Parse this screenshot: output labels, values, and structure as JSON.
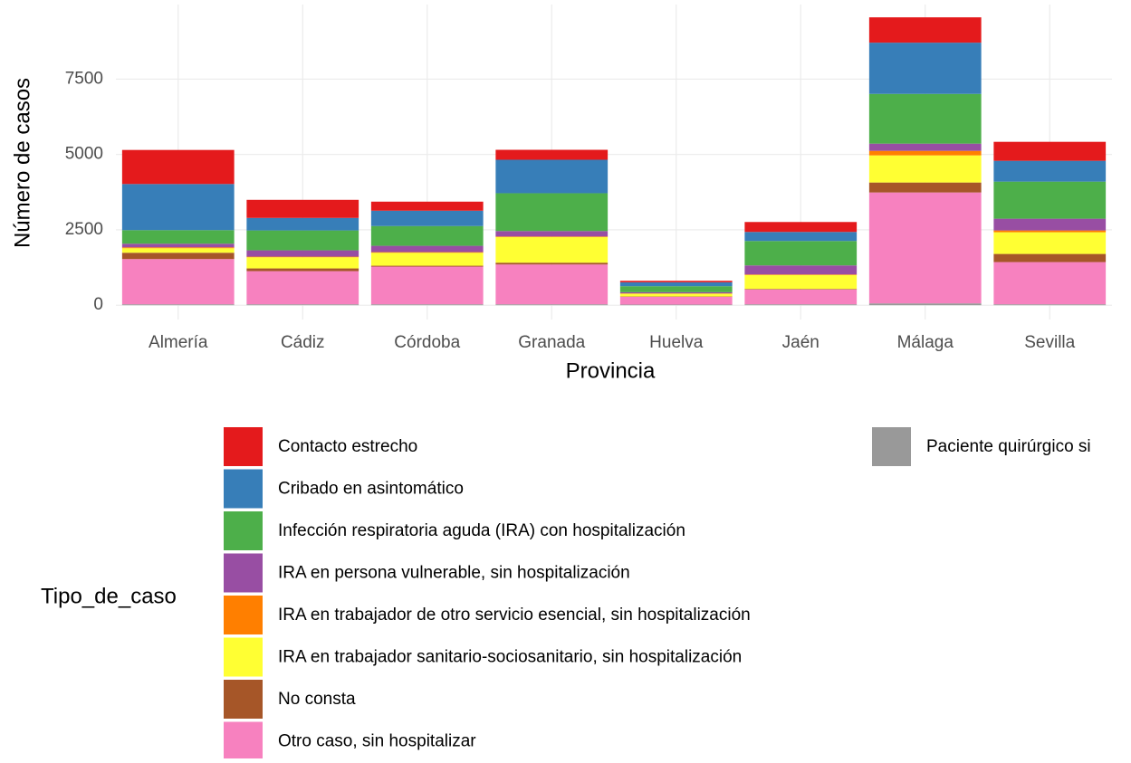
{
  "chart_data": {
    "type": "stacked_bar",
    "x_label": "Provincia",
    "y_label": "Número de casos",
    "legend_title": "Tipo_de_caso",
    "categories": [
      "Almería",
      "Cádiz",
      "Córdoba",
      "Granada",
      "Huelva",
      "Jaén",
      "Málaga",
      "Sevilla"
    ],
    "series": [
      {
        "name": "Contacto estrecho",
        "color": "#e41a1c",
        "values": [
          1130,
          600,
          300,
          330,
          50,
          330,
          840,
          630
        ]
      },
      {
        "name": "Cribado en asintomático",
        "color": "#377eb8",
        "values": [
          1530,
          415,
          510,
          1110,
          130,
          300,
          1700,
          690
        ]
      },
      {
        "name": "Infección respiratoria aguda (IRA) con hospitalización",
        "color": "#4daf4a",
        "values": [
          450,
          660,
          655,
          1255,
          200,
          810,
          1650,
          1230
        ]
      },
      {
        "name": "IRA en persona vulnerable, sin hospitalización",
        "color": "#984ea3",
        "values": [
          120,
          210,
          210,
          180,
          40,
          300,
          240,
          390
        ]
      },
      {
        "name": "IRA en trabajador de otro servicio esencial, sin hospitalización",
        "color": "#ff7f00",
        "values": [
          30,
          20,
          20,
          20,
          10,
          20,
          150,
          60
        ]
      },
      {
        "name": "IRA en trabajador sanitario-sociosanitario, sin hospitalización",
        "color": "#ffff33",
        "values": [
          150,
          370,
          430,
          850,
          90,
          460,
          900,
          720
        ]
      },
      {
        "name": "No consta",
        "color": "#a65628",
        "values": [
          210,
          90,
          30,
          60,
          10,
          20,
          330,
          270
        ]
      },
      {
        "name": "Otro caso, sin hospitalizar",
        "color": "#f781bf",
        "values": [
          1500,
          1100,
          1250,
          1320,
          260,
          490,
          3680,
          1400
        ]
      },
      {
        "name": "Paciente quirúrgico si",
        "color": "#999999",
        "values": [
          30,
          30,
          30,
          30,
          20,
          30,
          60,
          30
        ]
      }
    ],
    "ylim": [
      -475,
      9975
    ],
    "yticks": [
      0,
      2500,
      5000,
      7500
    ],
    "grid": true
  }
}
